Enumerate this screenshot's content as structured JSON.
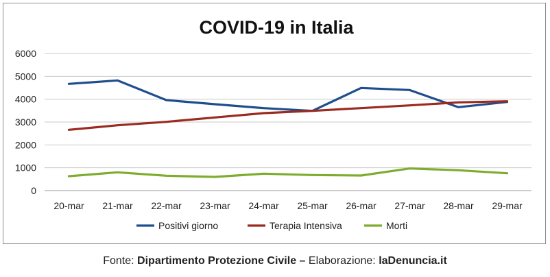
{
  "chart_data": {
    "type": "line",
    "title": "COVID-19 in Italia",
    "xlabel": "",
    "ylabel": "",
    "categories": [
      "20-mar",
      "21-mar",
      "22-mar",
      "23-mar",
      "24-mar",
      "25-mar",
      "26-mar",
      "27-mar",
      "28-mar",
      "29-mar"
    ],
    "ylim": [
      0,
      6000
    ],
    "yticks": [
      "0",
      "1000",
      "2000",
      "3000",
      "4000",
      "5000",
      "6000"
    ],
    "grid": true,
    "legend": "bottom",
    "series": [
      {
        "name": "Positivi giorno",
        "color": "#1f4e8c",
        "values": [
          4670,
          4820,
          3960,
          3780,
          3610,
          3490,
          4490,
          4400,
          3650,
          3880
        ]
      },
      {
        "name": "Terapia Intensiva",
        "color": "#9b2a1f",
        "values": [
          2660,
          2860,
          3010,
          3200,
          3390,
          3490,
          3610,
          3730,
          3860,
          3910
        ]
      },
      {
        "name": "Morti",
        "color": "#7fac2e",
        "values": [
          630,
          800,
          650,
          600,
          740,
          680,
          660,
          970,
          890,
          760
        ]
      }
    ]
  },
  "footer": {
    "prefix": "Fonte: ",
    "source": "Dipartimento Protezione Civile",
    "separator": " – ",
    "middle": "Elaborazione: ",
    "author": "laDenuncia.it"
  }
}
